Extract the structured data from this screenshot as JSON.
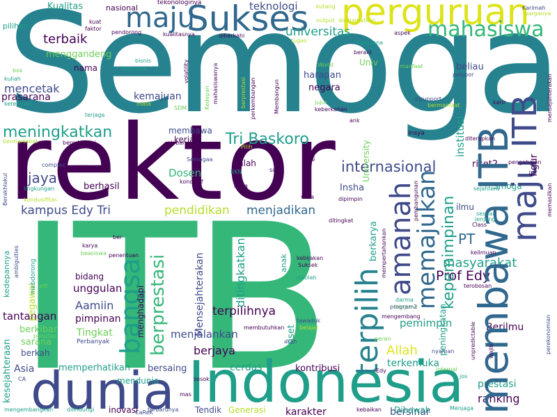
{
  "palette": {
    "purple": "#440154",
    "indigo": "#3e4a89",
    "blue": "#31688e",
    "teal": "#26828e",
    "green": "#1f9e89",
    "light_green": "#35b779",
    "lime": "#6ece58",
    "yellow": "#b5de2b",
    "bright_yellow": "#dde318"
  },
  "words": {
    "semoga": "Semoga",
    "rektor": "rektor",
    "itb_big": "ITB",
    "indonesia": "Indonesia",
    "dunia": "dunia",
    "sukses": "Sukses",
    "perguruan": "perguruan",
    "maju_top": "maju",
    "mahasiswa": "mahasiswa",
    "teknologi": "teknologi",
    "universitas": "universitas",
    "terbaik": "terbaik",
    "menggandeng": "menggandeng",
    "nama": "nama",
    "mencetak": "mencetak",
    "prasarana": "prasarana",
    "kemajuan": "kemajuan",
    "meningkatkan": "meningkatkan",
    "tri_baskoro": "Tri Baskoro",
    "internasional": "internasional",
    "jaya": "jaya",
    "berhasil": "berhasil",
    "kampus_edy_tri": "kampus Edy Tri",
    "pendidikan": "pendidikan",
    "menjadikan": "menjadikan",
    "dosen": "Dosen",
    "bangsa": "bangsa",
    "berprestasi": "berprestasi",
    "terpilih": "terpilih",
    "amanah": "amanah",
    "memajukan": "memajukan",
    "maju_itb_v": "maju ITB",
    "membawa_itb_v": "membawa ITB",
    "kepemimpinan": "kepemimpinan",
    "masyarakat": "masyarakat",
    "prof_edy": "Prof Edy",
    "pt": "PT",
    "allah": "Allah",
    "terkemuka": "terkemuka",
    "pemimpin": "pemimpin",
    "ranking": "ranking",
    "prestasi": "prestasi",
    "berilmu": "Berilmu",
    "bersinar": "bersinar",
    "karakter": "karakter",
    "kontribusi": "kontribusi",
    "cerdas": "cerdas",
    "berjaya": "berjaya",
    "menjalankan": "menjalankan",
    "terpilihnya": "terpilihnya",
    "ditingkatkan": "ditingkatkan",
    "mensejahterakan": "Mensejahterakan",
    "unggulan": "unggulan",
    "aamiin": "Aamiin",
    "pimpinan": "pimpinan",
    "tingkat": "Tingkat",
    "tantangan": "tantangan",
    "berkibar": "berkibar",
    "sarana": "sarana",
    "berkah": "berkah",
    "asia": "Asia",
    "memperhatikan": "memperhatikan",
    "bersaing": "bersaing",
    "mendunia": "mendunia",
    "inovasi": "inovasi",
    "tendik": "Tendik",
    "generasi": "Generasi",
    "dibawah": "Dibawah",
    "smoga": "Smoga",
    "riset2": "riset2",
    "ilmu": "ilmu",
    "institusi": "institusi",
    "figur": "figur",
    "harapan": "harapan",
    "negara": "negara",
    "univ": "Univ",
    "beliau": "beliau",
    "insha": "Insha",
    "berkarya": "berkarya",
    "membawa_s": "membawa",
    "kerja": "kerja",
    "salah": "salah",
    "peningkatan": "peningkatan",
    "kesejahteraan": "kesejahteraan",
    "pegawai": "pegawai",
    "nasional": "nasional",
    "kualitas": "Kualitas",
    "pilihan": "pilihan",
    "riset": "riset",
    "bidang": "bidang",
    "menghadapi": "menghadapi",
    "university": "University",
    "institusi_s": "institusi",
    "tekonologinya": "tekonologinya",
    "kutang": "kutang",
    "pengadilan": "pengadilan",
    "karimah": "Karimah",
    "warganya": "warganya",
    "aspek": "aspek",
    "tugas": "tugas",
    "berani": "berani",
    "bijaksana": "bijaksana",
    "kuat": "kuat",
    "faktor": "faktor",
    "pendorong": "pendorong",
    "kualitasnya": "kualitasnya",
    "diberkahi": "diberkahi",
    "bisnis": "bisnis",
    "tugasnya": "tugasnya",
    "volatility": "volatility",
    "mahasiswanya": "mahasiswanya",
    "kedepan": "Kedepan",
    "perkembangan": "perkembangan",
    "membangun": "Membangun",
    "world": "World",
    "manfaat": "manfaat",
    "pelopor": "pelopor",
    "disupport": "disupport",
    "bermanfaat": "bermanfaat",
    "karir": "karir",
    "mensejahterakan_s": "mensejahterakan",
    "box": "box",
    "kuliah": "kuliah",
    "ketentuan": "ketentuan",
    "terjaga": "terjaga",
    "mata": "mata",
    "sdm": "SDM",
    "jujur": "jujur",
    "keberkahan": "keberkahan",
    "ank": "ank",
    "insya": "Insya",
    "diterapkan": "diterapkan",
    "bermartabat": "bermartabat",
    "berorientasi": "berorientasi",
    "global": "global",
    "semogaa": "Semogaa",
    "pilih": "Pilih",
    "complex": "complex",
    "lingkungan": "lingkungan",
    "kondusif": "kondusif",
    "kkn": "KKN",
    "dana": "dana",
    "era": "era",
    "sains": "sains",
    "vuca": "vuca",
    "dipimpin": "dipimpin",
    "pembangunan": "pembangunan",
    "sejahtera": "sejahtera",
    "sesuai": "sesuai",
    "jenjang": "jenjang",
    "class": "Class",
    "pengabdian": "pengabdian",
    "memasilkan": "memasilkan",
    "berakhlakul": "Berakhlakul",
    "kondusifitas": "kondusifitas",
    "ditingkat": "ditingkat",
    "mempertahankan": "mempertahankan",
    "kebijakan": "kebijakan",
    "suksek": "Suksek",
    "sekolah": "sekolah",
    "karya": "karya",
    "beasiswa": "beasiswa",
    "penentuan": "penentuan",
    "ber": "ber",
    "mebdorong": "mebdorong",
    "ambiguities": "ambiguities",
    "kedepannya": "kedepannya",
    "elit": "elit",
    "keilmuan": "keilmuan",
    "terobosan": "terobosan",
    "darma": "darma",
    "berguna": "berguna",
    "program2": "program2",
    "tawaduk": "tawaduk",
    "belajar": "belajar",
    "mengembang": "mengembang",
    "membutuhkan": "membutuhkan",
    "unpredictable": "unpredictable",
    "wajib": "wajib",
    "perekonomian": "perekonomian",
    "panutan": "panutan",
    "perbanyak": "Perbanyak",
    "nyaman": "nyaman",
    "peran": "peran",
    "arah": "arah",
    "output": "output",
    "diselamatkan": "diselamatkan",
    "ca": "CA",
    "careK": "CaReK",
    "sosok": "sosok",
    "mas": "mas",
    "terbarunya": "terbarunya",
    "dilindungi": "dilindungi",
    "kebaikan": "kebaikan",
    "menjaga": "Menjaga",
    "internal": "internal",
    "jos": "jos",
    "edy": "Edy",
    "mengembangkan": "mengembangkan"
  }
}
